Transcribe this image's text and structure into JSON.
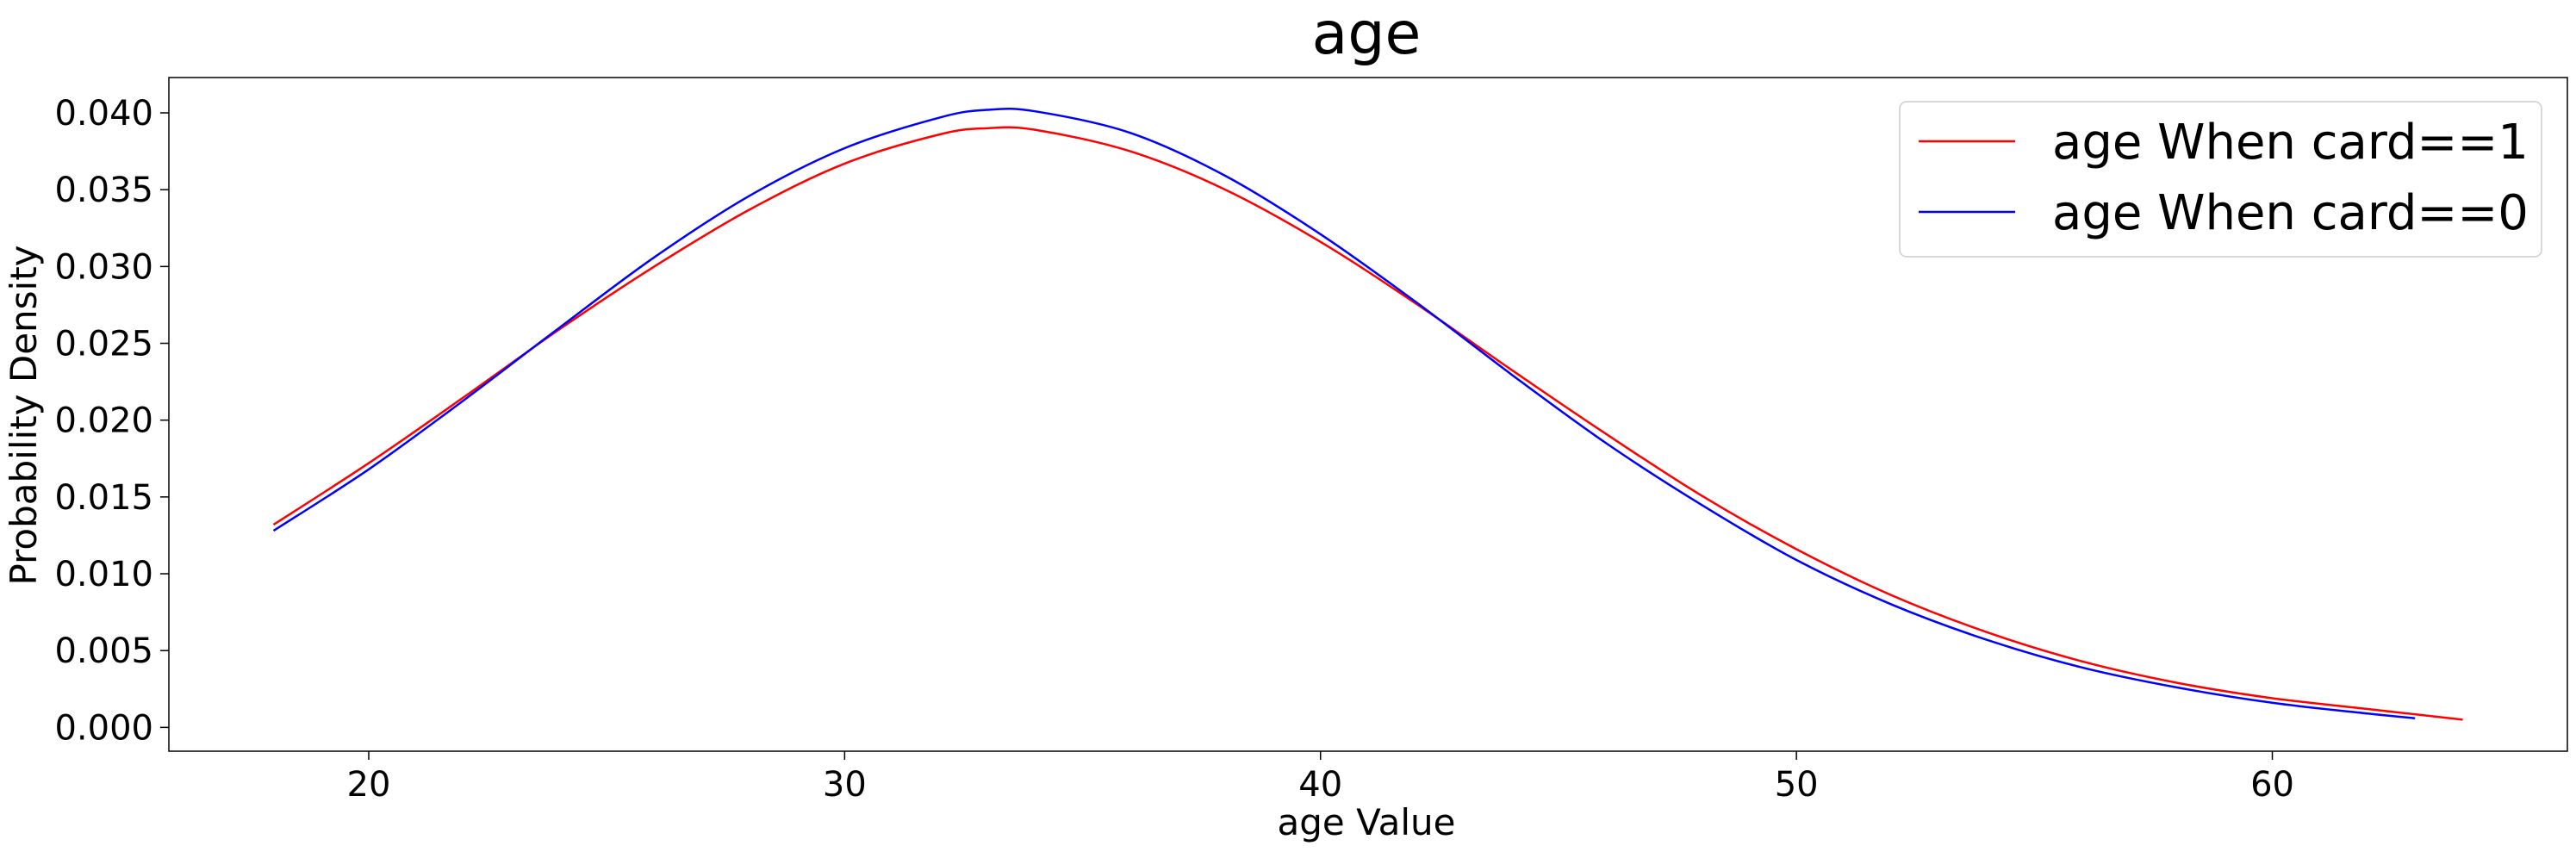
{
  "chart_data": {
    "type": "line",
    "title": "age",
    "xlabel": "age Value",
    "ylabel": "Probability Density",
    "xlim": [
      15.8,
      66.2
    ],
    "ylim": [
      -0.00155,
      0.0423
    ],
    "xticks": [
      20,
      30,
      40,
      50,
      60
    ],
    "yticks": [
      "0.000",
      "0.005",
      "0.010",
      "0.015",
      "0.020",
      "0.025",
      "0.030",
      "0.035",
      "0.040"
    ],
    "grid": false,
    "legend_position": "top-right",
    "series": [
      {
        "name": "age When card==1",
        "color": "#ff0000",
        "x": [
          18,
          20,
          22,
          24,
          26,
          28,
          30,
          32,
          33,
          34,
          36,
          38,
          40,
          42,
          44,
          46,
          48,
          50,
          52,
          54,
          56,
          58,
          60,
          62,
          64
        ],
        "y": [
          0.0132,
          0.0172,
          0.0215,
          0.0259,
          0.03,
          0.0337,
          0.0367,
          0.0386,
          0.039,
          0.0389,
          0.0375,
          0.035,
          0.0316,
          0.0276,
          0.0233,
          0.0191,
          0.0151,
          0.0116,
          0.0086,
          0.0062,
          0.0043,
          0.0029,
          0.0019,
          0.0012,
          0.0005
        ]
      },
      {
        "name": "age When card==0",
        "color": "#0000ff",
        "x": [
          18,
          20,
          22,
          24,
          26,
          28,
          30,
          32,
          33,
          34,
          36,
          38,
          40,
          42,
          44,
          46,
          48,
          50,
          52,
          54,
          56,
          58,
          60,
          62,
          63
        ],
        "y": [
          0.0128,
          0.0168,
          0.0213,
          0.026,
          0.0306,
          0.0346,
          0.0377,
          0.0397,
          0.0402,
          0.0401,
          0.0387,
          0.0359,
          0.0321,
          0.0277,
          0.023,
          0.0185,
          0.0145,
          0.0109,
          0.008,
          0.0057,
          0.0039,
          0.0026,
          0.0016,
          0.0009,
          0.0006
        ]
      }
    ]
  }
}
